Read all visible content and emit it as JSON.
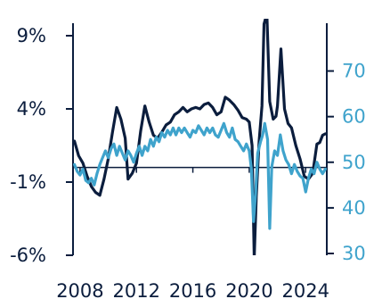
{
  "chart_data": {
    "type": "line",
    "title": "",
    "xlabel": "",
    "x_tick_labels": [
      "2008",
      "2012",
      "2016",
      "2020",
      "2024"
    ],
    "x_range": [
      2007.5,
      2025.5
    ],
    "grid": false,
    "legend": "none",
    "left_axis": {
      "ylim": [
        -6,
        9
      ],
      "ticks": [
        9,
        4,
        -1,
        -6
      ],
      "tick_labels": [
        "9%",
        "4%",
        "-1%",
        "-6%"
      ],
      "color": "#0b1d3d"
    },
    "right_axis": {
      "ylim": [
        30,
        75
      ],
      "ticks": [
        70,
        60,
        50,
        40,
        30
      ],
      "tick_labels": [
        "70",
        "60",
        "50",
        "40",
        "30"
      ],
      "color": "#3fa3cc"
    },
    "series": [
      {
        "axis": "left",
        "color": "#0b1d3d",
        "points": [
          [
            2007.6,
            1.8
          ],
          [
            2007.9,
            0.8
          ],
          [
            2008.2,
            0.3
          ],
          [
            2008.5,
            -0.6
          ],
          [
            2008.8,
            -1.3
          ],
          [
            2009.1,
            -1.7
          ],
          [
            2009.4,
            -1.9
          ],
          [
            2009.7,
            -0.8
          ],
          [
            2010.0,
            0.6
          ],
          [
            2010.3,
            2.4
          ],
          [
            2010.6,
            4.1
          ],
          [
            2010.9,
            3.3
          ],
          [
            2011.2,
            2.0
          ],
          [
            2011.4,
            -0.8
          ],
          [
            2011.7,
            -0.4
          ],
          [
            2012.0,
            0.3
          ],
          [
            2012.3,
            2.5
          ],
          [
            2012.6,
            4.2
          ],
          [
            2012.9,
            3.1
          ],
          [
            2013.2,
            2.2
          ],
          [
            2013.5,
            2.0
          ],
          [
            2013.8,
            2.4
          ],
          [
            2014.1,
            2.9
          ],
          [
            2014.4,
            3.1
          ],
          [
            2014.7,
            3.6
          ],
          [
            2015.0,
            3.8
          ],
          [
            2015.3,
            4.1
          ],
          [
            2015.6,
            3.8
          ],
          [
            2015.9,
            4.0
          ],
          [
            2016.2,
            4.1
          ],
          [
            2016.5,
            4.0
          ],
          [
            2016.8,
            4.3
          ],
          [
            2017.1,
            4.4
          ],
          [
            2017.4,
            4.1
          ],
          [
            2017.7,
            3.6
          ],
          [
            2018.0,
            3.8
          ],
          [
            2018.3,
            4.8
          ],
          [
            2018.6,
            4.6
          ],
          [
            2018.9,
            4.3
          ],
          [
            2019.2,
            3.9
          ],
          [
            2019.5,
            3.4
          ],
          [
            2019.8,
            3.3
          ],
          [
            2020.0,
            3.1
          ],
          [
            2020.2,
            1.5
          ],
          [
            2020.35,
            -6.2
          ],
          [
            2020.5,
            -2.0
          ],
          [
            2020.7,
            1.8
          ],
          [
            2020.9,
            4.2
          ],
          [
            2021.05,
            9.8
          ],
          [
            2021.25,
            10.5
          ],
          [
            2021.45,
            4.5
          ],
          [
            2021.7,
            3.3
          ],
          [
            2021.9,
            3.5
          ],
          [
            2022.0,
            4.2
          ],
          [
            2022.25,
            8.1
          ],
          [
            2022.5,
            4.0
          ],
          [
            2022.75,
            3.0
          ],
          [
            2023.0,
            2.7
          ],
          [
            2023.3,
            1.5
          ],
          [
            2023.6,
            0.6
          ],
          [
            2023.9,
            -0.6
          ],
          [
            2024.2,
            -0.8
          ],
          [
            2024.5,
            -0.4
          ],
          [
            2024.8,
            1.6
          ],
          [
            2025.0,
            1.7
          ],
          [
            2025.2,
            2.2
          ],
          [
            2025.4,
            2.3
          ]
        ]
      },
      {
        "axis": "right",
        "color": "#3fa3cc",
        "points": [
          [
            2007.6,
            49.5
          ],
          [
            2007.8,
            48.0
          ],
          [
            2008.0,
            47.2
          ],
          [
            2008.2,
            48.5
          ],
          [
            2008.4,
            46.0
          ],
          [
            2008.6,
            45.5
          ],
          [
            2008.8,
            46.5
          ],
          [
            2009.0,
            45.0
          ],
          [
            2009.2,
            47.5
          ],
          [
            2009.4,
            49.5
          ],
          [
            2009.6,
            51.0
          ],
          [
            2009.8,
            52.5
          ],
          [
            2010.0,
            51.0
          ],
          [
            2010.2,
            53.0
          ],
          [
            2010.4,
            54.0
          ],
          [
            2010.6,
            51.5
          ],
          [
            2010.8,
            53.5
          ],
          [
            2011.0,
            52.0
          ],
          [
            2011.2,
            50.5
          ],
          [
            2011.4,
            52.5
          ],
          [
            2011.6,
            51.5
          ],
          [
            2011.8,
            50.0
          ],
          [
            2012.0,
            52.0
          ],
          [
            2012.2,
            53.5
          ],
          [
            2012.4,
            51.5
          ],
          [
            2012.6,
            53.5
          ],
          [
            2012.8,
            52.5
          ],
          [
            2013.0,
            55.0
          ],
          [
            2013.2,
            53.5
          ],
          [
            2013.4,
            55.5
          ],
          [
            2013.6,
            54.5
          ],
          [
            2013.8,
            56.5
          ],
          [
            2014.0,
            55.5
          ],
          [
            2014.2,
            57.0
          ],
          [
            2014.4,
            56.0
          ],
          [
            2014.6,
            57.5
          ],
          [
            2014.8,
            56.0
          ],
          [
            2015.0,
            57.5
          ],
          [
            2015.2,
            56.5
          ],
          [
            2015.4,
            57.5
          ],
          [
            2015.6,
            56.5
          ],
          [
            2015.8,
            55.5
          ],
          [
            2016.0,
            57.0
          ],
          [
            2016.2,
            56.5
          ],
          [
            2016.4,
            58.0
          ],
          [
            2016.6,
            57.0
          ],
          [
            2016.8,
            56.0
          ],
          [
            2017.0,
            57.5
          ],
          [
            2017.2,
            56.5
          ],
          [
            2017.4,
            57.5
          ],
          [
            2017.6,
            56.0
          ],
          [
            2017.8,
            55.5
          ],
          [
            2018.0,
            57.0
          ],
          [
            2018.2,
            58.5
          ],
          [
            2018.4,
            56.5
          ],
          [
            2018.6,
            55.5
          ],
          [
            2018.8,
            57.5
          ],
          [
            2019.0,
            55.0
          ],
          [
            2019.2,
            54.5
          ],
          [
            2019.4,
            53.5
          ],
          [
            2019.6,
            52.5
          ],
          [
            2019.8,
            54.0
          ],
          [
            2020.0,
            52.5
          ],
          [
            2020.15,
            48.5
          ],
          [
            2020.3,
            37.0
          ],
          [
            2020.45,
            43.0
          ],
          [
            2020.6,
            52.0
          ],
          [
            2020.8,
            54.5
          ],
          [
            2020.95,
            56.0
          ],
          [
            2021.1,
            58.5
          ],
          [
            2021.3,
            55.0
          ],
          [
            2021.45,
            35.5
          ],
          [
            2021.6,
            49.0
          ],
          [
            2021.8,
            52.5
          ],
          [
            2022.0,
            51.5
          ],
          [
            2022.2,
            56.0
          ],
          [
            2022.4,
            52.5
          ],
          [
            2022.6,
            50.5
          ],
          [
            2022.8,
            49.5
          ],
          [
            2023.0,
            47.5
          ],
          [
            2023.2,
            49.5
          ],
          [
            2023.4,
            48.0
          ],
          [
            2023.6,
            47.0
          ],
          [
            2023.8,
            46.5
          ],
          [
            2024.0,
            43.5
          ],
          [
            2024.2,
            46.5
          ],
          [
            2024.4,
            48.5
          ],
          [
            2024.6,
            47.5
          ],
          [
            2024.8,
            50.0
          ],
          [
            2025.0,
            48.5
          ],
          [
            2025.2,
            47.5
          ],
          [
            2025.4,
            48.5
          ]
        ]
      }
    ]
  }
}
